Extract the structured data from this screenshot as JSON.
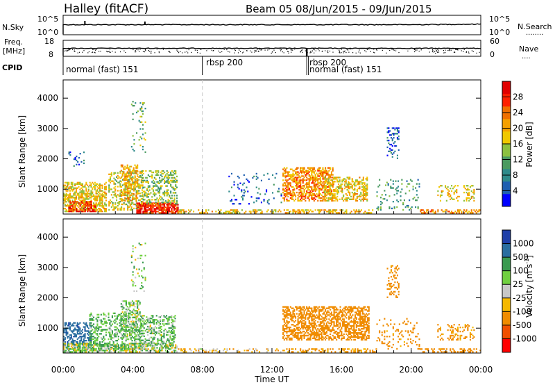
{
  "header": {
    "station": "Halley (fitACF)",
    "beam_range": "Beam 05   08/Jun/2015 - 09/Jun/2015"
  },
  "noise_panel": {
    "left_label": "N.Sky",
    "left_ticks": [
      "10^5",
      "10^0"
    ],
    "right_label": "N.Search",
    "right_ticks": [
      "10^5",
      "10^0"
    ],
    "right_legend": "........"
  },
  "freq_panel": {
    "left_label_1": "Freq.",
    "left_label_2": "[MHz]",
    "left_ticks": [
      "18",
      "8"
    ],
    "right_label": "Nave",
    "right_ticks": [
      "60",
      "0"
    ],
    "right_legend": "...."
  },
  "cpid": {
    "label": "CPID",
    "segments": [
      {
        "name": "normal (fast) 151",
        "start_h": 0,
        "end_h": 8
      },
      {
        "name": "rbsp 200",
        "start_h": 8,
        "end_h": 14
      },
      {
        "name": "rbsp 200",
        "start_h": 14,
        "end_h": 14.1
      },
      {
        "name": "normal (fast) 151",
        "start_h": 14.1,
        "end_h": 24
      }
    ]
  },
  "colors": {
    "power": [
      "#0000ff",
      "#1f5fb0",
      "#2e8a8a",
      "#4a9a60",
      "#8cc040",
      "#f0c800",
      "#f5a000",
      "#f07000",
      "#ff2000",
      "#e00000"
    ],
    "velocity": [
      "#ff0000",
      "#f05000",
      "#f08c00",
      "#f5b800",
      "#c8c8c8",
      "#70d040",
      "#3a9a50",
      "#2a6ea0",
      "#1f3fa8"
    ],
    "dashed_line": "#c8c8c8"
  },
  "chart_data": [
    {
      "type": "heatmap",
      "panel": "power",
      "ylabel": "Slant Range [km]",
      "y_ticks": [
        1000,
        2000,
        3000,
        4000
      ],
      "ylim": [
        180,
        4600
      ],
      "xlim": [
        0,
        24
      ],
      "colorbar_label": "Power [dB]",
      "colorbar_ticks": [
        "4",
        "8",
        "12",
        "16",
        "20",
        "24",
        "28"
      ],
      "colorbar_range": [
        0,
        32
      ],
      "clusters": [
        {
          "t0": 0.0,
          "t1": 2.5,
          "r0": 250,
          "r1": 1200,
          "level": 18,
          "density": 0.55
        },
        {
          "t0": 0.3,
          "t1": 1.8,
          "r0": 250,
          "r1": 600,
          "level": 26,
          "density": 0.6
        },
        {
          "t0": 2.6,
          "t1": 4.6,
          "r0": 300,
          "r1": 1600,
          "level": 16,
          "density": 0.35
        },
        {
          "t0": 3.3,
          "t1": 4.3,
          "r0": 600,
          "r1": 1800,
          "level": 20,
          "density": 0.4
        },
        {
          "t0": 4.2,
          "t1": 6.6,
          "r0": 200,
          "r1": 520,
          "level": 28,
          "density": 0.75
        },
        {
          "t0": 4.5,
          "t1": 6.5,
          "r0": 500,
          "r1": 1600,
          "level": 14,
          "density": 0.35
        },
        {
          "t0": 3.9,
          "t1": 4.7,
          "r0": 2200,
          "r1": 3900,
          "level": 12,
          "density": 0.1
        },
        {
          "t0": 6.6,
          "t1": 12.5,
          "r0": 200,
          "r1": 320,
          "level": 18,
          "density": 0.35
        },
        {
          "t0": 9.5,
          "t1": 12.5,
          "r0": 500,
          "r1": 1500,
          "level": 6,
          "density": 0.08
        },
        {
          "t0": 12.6,
          "t1": 15.5,
          "r0": 600,
          "r1": 1700,
          "level": 22,
          "density": 0.55
        },
        {
          "t0": 15.0,
          "t1": 17.5,
          "r0": 600,
          "r1": 1400,
          "level": 18,
          "density": 0.45
        },
        {
          "t0": 12.6,
          "t1": 17.8,
          "r0": 200,
          "r1": 330,
          "level": 20,
          "density": 0.45
        },
        {
          "t0": 18.0,
          "t1": 20.5,
          "r0": 300,
          "r1": 1300,
          "level": 10,
          "density": 0.12
        },
        {
          "t0": 18.6,
          "t1": 19.3,
          "r0": 2000,
          "r1": 3050,
          "level": 6,
          "density": 0.25
        },
        {
          "t0": 20.5,
          "t1": 24.0,
          "r0": 200,
          "r1": 330,
          "level": 22,
          "density": 0.45
        },
        {
          "t0": 21.5,
          "t1": 23.6,
          "r0": 600,
          "r1": 1100,
          "level": 18,
          "density": 0.25
        },
        {
          "t0": 0.3,
          "t1": 1.2,
          "r0": 1700,
          "r1": 2200,
          "level": 6,
          "density": 0.12
        }
      ]
    },
    {
      "type": "heatmap",
      "panel": "velocity",
      "ylabel": "Slant Range [km]",
      "y_ticks": [
        1000,
        2000,
        3000,
        4000
      ],
      "ylim": [
        180,
        4600
      ],
      "xlim": [
        0,
        24
      ],
      "colorbar_label": "Velocity [m s^-1]",
      "colorbar_ticks": [
        "-1000",
        "-500",
        "-100",
        "-25",
        "25",
        "100",
        "500",
        "1000"
      ],
      "colorbar_range": [
        -1500,
        1500
      ],
      "clusters": [
        {
          "t0": 0.0,
          "t1": 1.6,
          "r0": 300,
          "r1": 1200,
          "level": 900,
          "density": 0.5
        },
        {
          "t0": 0.0,
          "t1": 6.5,
          "r0": 200,
          "r1": 500,
          "level": 40,
          "density": 0.6
        },
        {
          "t0": 1.5,
          "t1": 4.5,
          "r0": 300,
          "r1": 1500,
          "level": 120,
          "density": 0.35
        },
        {
          "t0": 3.3,
          "t1": 4.4,
          "r0": 700,
          "r1": 1900,
          "level": 60,
          "density": 0.4
        },
        {
          "t0": 4.4,
          "t1": 6.4,
          "r0": 400,
          "r1": 1400,
          "level": 80,
          "density": 0.35
        },
        {
          "t0": 3.9,
          "t1": 4.7,
          "r0": 2200,
          "r1": 3900,
          "level": 50,
          "density": 0.1
        },
        {
          "t0": 6.6,
          "t1": 12.5,
          "r0": 200,
          "r1": 320,
          "level": -80,
          "density": 0.3
        },
        {
          "t0": 12.6,
          "t1": 17.6,
          "r0": 600,
          "r1": 1700,
          "level": -300,
          "density": 0.55
        },
        {
          "t0": 12.6,
          "t1": 18.0,
          "r0": 200,
          "r1": 330,
          "level": -150,
          "density": 0.4
        },
        {
          "t0": 18.0,
          "t1": 20.5,
          "r0": 300,
          "r1": 1300,
          "level": -200,
          "density": 0.12
        },
        {
          "t0": 18.6,
          "t1": 19.3,
          "r0": 2000,
          "r1": 3050,
          "level": -200,
          "density": 0.25
        },
        {
          "t0": 20.5,
          "t1": 24.0,
          "r0": 200,
          "r1": 330,
          "level": -200,
          "density": 0.45
        },
        {
          "t0": 21.5,
          "t1": 23.6,
          "r0": 600,
          "r1": 1100,
          "level": -150,
          "density": 0.25
        }
      ]
    }
  ],
  "x_axis": {
    "ticks": [
      "00:00",
      "04:00",
      "08:00",
      "12:00",
      "16:00",
      "20:00",
      "00:00"
    ],
    "label": "Time UT"
  }
}
